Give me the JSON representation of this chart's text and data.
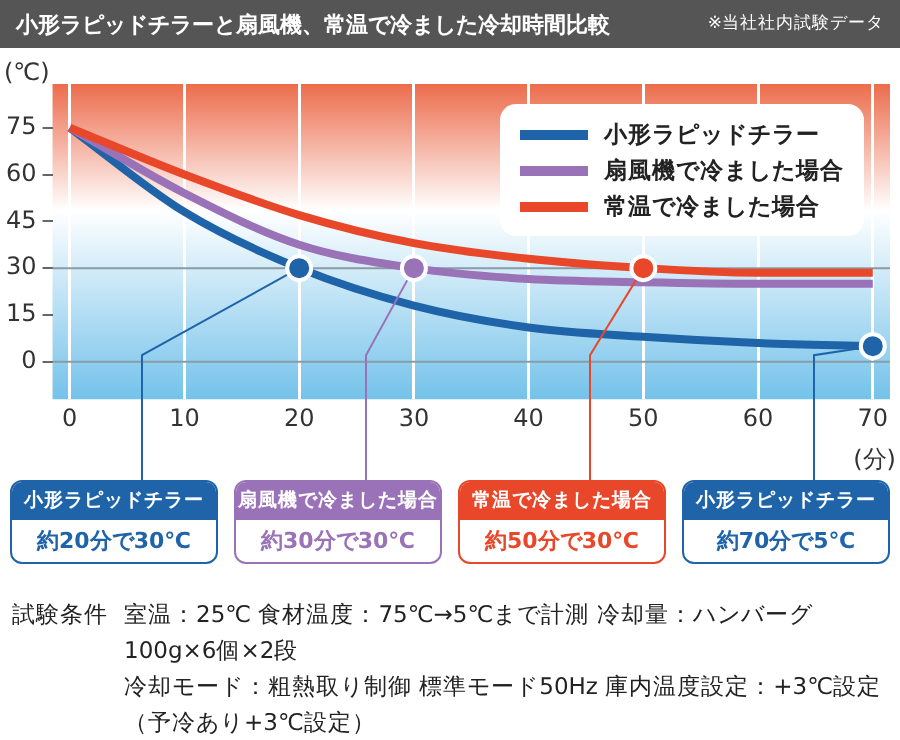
{
  "chart_data": {
    "type": "line",
    "title": "小形ラピッドチラーと扇風機、常温で冷ました冷却時間比較",
    "xlabel": "(分)",
    "ylabel": "(℃)",
    "x": [
      0,
      10,
      20,
      30,
      40,
      50,
      60,
      70
    ],
    "series": [
      {
        "name": "小形ラピッドチラー",
        "color": "#1f64a8",
        "values": [
          75,
          48,
          30,
          18,
          11,
          8,
          6,
          5
        ]
      },
      {
        "name": "扇風機で冷ました場合",
        "color": "#9a72b8",
        "values": [
          75,
          54,
          37.5,
          30,
          26.5,
          25.5,
          25,
          25
        ]
      },
      {
        "name": "常温で冷ました場合",
        "color": "#e8472a",
        "values": [
          75,
          60,
          47,
          38,
          33,
          30,
          28.5,
          28.5
        ]
      }
    ],
    "xlim": [
      -1.5,
      71.5
    ],
    "xticks": [
      0,
      10,
      20,
      30,
      40,
      50,
      60,
      70
    ],
    "ylim": [
      -12,
      89
    ],
    "yticks": [
      0,
      15,
      30,
      45,
      60,
      75
    ],
    "grid": "x",
    "legend": "top right",
    "marker": "none",
    "line_style": "solid",
    "ref_lines": [
      {
        "axis": "y",
        "value": 30,
        "color": "#8a9aa6"
      },
      {
        "axis": "y",
        "value": 0,
        "color": "#8a9aa6"
      }
    ],
    "annotations": [
      "※当社社内試験データ",
      "試験条件",
      "室温：25℃ 食材温度：75℃→5℃まで計測 冷却量：ハンバーグ100g×6個×2段",
      "冷却モード：粗熱取り制御 標準モード50Hz 庫内温度設定：+3℃設定（予冷あり+3℃設定）",
      {
        "text": "小形ラピッドチラー",
        "x": 20,
        "y": 30
      },
      "約20分で30℃",
      {
        "text": "扇風機で冷ました場合",
        "x": 30,
        "y": 30
      },
      "約30分で30℃",
      {
        "text": "常温で冷ました場合",
        "x": 50,
        "y": 30
      },
      "約50分で30℃",
      {
        "text": "小形ラピッドチラー",
        "x": 70,
        "y": 5
      },
      "約70分で5℃"
    ]
  }
}
